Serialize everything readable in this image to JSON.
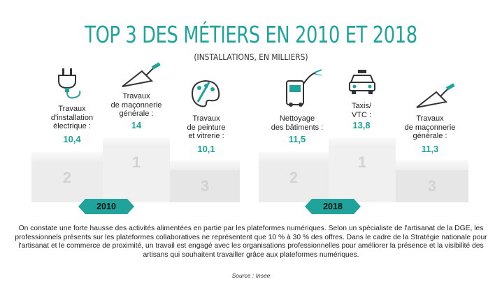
{
  "title": "TOP 3 DES MÉTIERS EN 2010 ET 2018",
  "subtitle": "(INSTALLATIONS, EN MILLIERS)",
  "colors": {
    "accent": "#1fa39a",
    "podium": "#ececec",
    "rank_text": "#d3d3d3"
  },
  "podium_2010": {
    "year": "2010",
    "items": [
      {
        "rank": "2",
        "label": [
          "Travaux",
          "d'installation",
          "électrique :"
        ],
        "value": "10,4",
        "icon": "electric-plug-icon"
      },
      {
        "rank": "1",
        "label": [
          "Travaux",
          "de maçonnerie",
          "générale :"
        ],
        "value": "14",
        "icon": "trowel-icon"
      },
      {
        "rank": "3",
        "label": [
          "Travaux",
          "de peinture",
          "et vitrerie :"
        ],
        "value": "10,1",
        "icon": "paint-palette-icon"
      }
    ]
  },
  "podium_2018": {
    "year": "2018",
    "items": [
      {
        "rank": "2",
        "label": [
          "Nettoyage",
          "des bâtiments :"
        ],
        "value": "11,5",
        "icon": "pressure-washer-icon"
      },
      {
        "rank": "1",
        "label": [
          "Taxis/",
          "VTC :"
        ],
        "value": "13,8",
        "icon": "taxi-icon"
      },
      {
        "rank": "3",
        "label": [
          "Travaux",
          "de maçonnerie",
          "générale :"
        ],
        "value": "11,3",
        "icon": "trowel-icon"
      }
    ]
  },
  "paragraph": "On constate une forte hausse des activités alimentées en partie par les plateformes numériques. Selon un spécialiste de l'artisanat de la DGE, les professionnels présents sur les plateformes collaboratives ne représentent que 10 % à 30 % des offres. Dans le cadre de la Stratégie nationale pour l'artisanat et le commerce de proximité, un travail est engagé avec les organisations professionnelles pour améliorer la présence et la visibilité des artisans qui souhaitent travailler grâce aux plateformes numériques.",
  "source": "Source : Insee"
}
